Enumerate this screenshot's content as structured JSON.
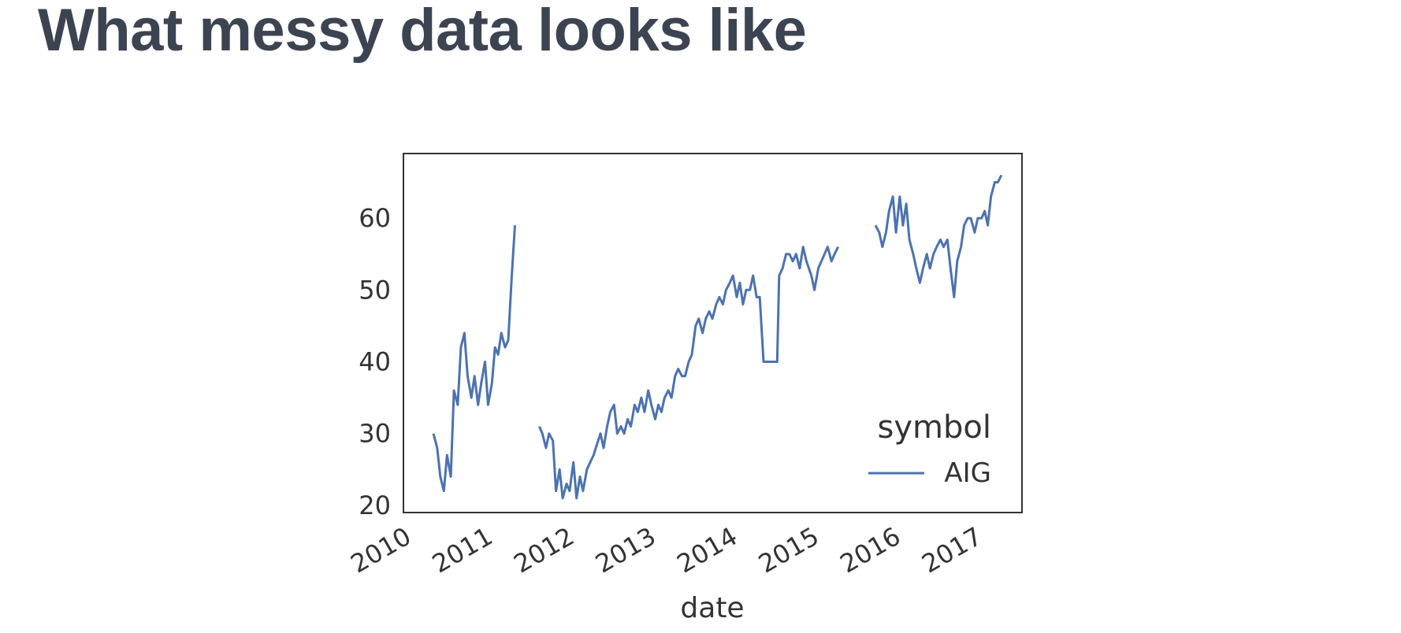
{
  "page": {
    "title": "What messy data looks like"
  },
  "chart_data": {
    "type": "line",
    "title": "",
    "xlabel": "date",
    "ylabel": "",
    "xlim": [
      "2010-01-01",
      "2017-08-01"
    ],
    "ylim": [
      19,
      69
    ],
    "x_ticks": [
      "2010",
      "2011",
      "2012",
      "2013",
      "2014",
      "2015",
      "2016",
      "2017"
    ],
    "y_ticks": [
      20,
      30,
      40,
      50,
      60
    ],
    "grid": false,
    "legend": {
      "title": "symbol",
      "position": "bottom-right"
    },
    "colors": {
      "series": "#4c72b0",
      "frame": "#333333",
      "text": "#333333",
      "title": "#3d4451"
    },
    "series": [
      {
        "name": "AIG",
        "segments": [
          [
            [
              "2010-05-15",
              30
            ],
            [
              "2010-06-01",
              28
            ],
            [
              "2010-06-15",
              24
            ],
            [
              "2010-07-01",
              22
            ],
            [
              "2010-07-15",
              27
            ],
            [
              "2010-08-01",
              24
            ],
            [
              "2010-08-15",
              36
            ],
            [
              "2010-09-01",
              34
            ],
            [
              "2010-09-15",
              42
            ],
            [
              "2010-10-01",
              44
            ],
            [
              "2010-10-15",
              38
            ],
            [
              "2010-11-01",
              35
            ],
            [
              "2010-11-15",
              38
            ],
            [
              "2010-12-01",
              34
            ],
            [
              "2010-12-15",
              37
            ],
            [
              "2011-01-01",
              40
            ],
            [
              "2011-01-15",
              34
            ],
            [
              "2011-02-01",
              37
            ],
            [
              "2011-02-15",
              42
            ],
            [
              "2011-03-01",
              41
            ],
            [
              "2011-03-15",
              44
            ],
            [
              "2011-04-01",
              42
            ],
            [
              "2011-04-15",
              43
            ],
            [
              "2011-05-01",
              52
            ],
            [
              "2011-05-15",
              59
            ]
          ],
          [
            [
              "2011-09-01",
              31
            ],
            [
              "2011-09-15",
              30
            ],
            [
              "2011-10-01",
              28
            ],
            [
              "2011-10-15",
              30
            ],
            [
              "2011-11-01",
              29
            ],
            [
              "2011-11-15",
              22
            ],
            [
              "2011-12-01",
              25
            ],
            [
              "2011-12-15",
              21
            ],
            [
              "2012-01-01",
              23
            ],
            [
              "2012-01-15",
              22
            ],
            [
              "2012-02-01",
              26
            ],
            [
              "2012-02-15",
              21
            ],
            [
              "2012-03-01",
              24
            ],
            [
              "2012-03-15",
              22
            ],
            [
              "2012-04-01",
              25
            ],
            [
              "2012-05-01",
              27
            ],
            [
              "2012-06-01",
              30
            ],
            [
              "2012-06-15",
              28
            ],
            [
              "2012-07-01",
              31
            ],
            [
              "2012-07-15",
              33
            ],
            [
              "2012-08-01",
              34
            ],
            [
              "2012-08-15",
              30
            ],
            [
              "2012-09-01",
              31
            ],
            [
              "2012-09-15",
              30
            ],
            [
              "2012-10-01",
              32
            ],
            [
              "2012-10-15",
              31
            ],
            [
              "2012-11-01",
              34
            ],
            [
              "2012-11-15",
              33
            ],
            [
              "2012-12-01",
              35
            ],
            [
              "2012-12-15",
              33
            ],
            [
              "2013-01-01",
              36
            ],
            [
              "2013-01-15",
              34
            ],
            [
              "2013-02-01",
              32
            ],
            [
              "2013-02-15",
              34
            ],
            [
              "2013-03-01",
              33
            ],
            [
              "2013-03-15",
              35
            ],
            [
              "2013-04-01",
              36
            ],
            [
              "2013-04-15",
              35
            ],
            [
              "2013-05-01",
              38
            ],
            [
              "2013-05-15",
              39
            ],
            [
              "2013-06-01",
              38
            ],
            [
              "2013-06-15",
              38
            ],
            [
              "2013-07-01",
              40
            ],
            [
              "2013-07-15",
              41
            ],
            [
              "2013-08-01",
              45
            ],
            [
              "2013-08-15",
              46
            ],
            [
              "2013-09-01",
              44
            ],
            [
              "2013-09-15",
              46
            ],
            [
              "2013-10-01",
              47
            ],
            [
              "2013-10-15",
              46
            ],
            [
              "2013-11-01",
              48
            ],
            [
              "2013-11-15",
              49
            ],
            [
              "2013-12-01",
              48
            ],
            [
              "2013-12-15",
              50
            ],
            [
              "2014-01-01",
              51
            ],
            [
              "2014-01-15",
              52
            ],
            [
              "2014-02-01",
              49
            ],
            [
              "2014-02-15",
              51
            ],
            [
              "2014-03-01",
              48
            ],
            [
              "2014-03-15",
              50
            ],
            [
              "2014-04-01",
              50
            ],
            [
              "2014-04-15",
              52
            ],
            [
              "2014-05-01",
              49
            ],
            [
              "2014-05-15",
              49
            ],
            [
              "2014-06-01",
              40
            ],
            [
              "2014-06-15",
              40
            ],
            [
              "2014-07-01",
              40
            ],
            [
              "2014-07-15",
              40
            ],
            [
              "2014-08-01",
              40
            ],
            [
              "2014-08-10",
              52
            ],
            [
              "2014-08-25",
              53
            ],
            [
              "2014-09-10",
              55
            ],
            [
              "2014-09-25",
              55
            ],
            [
              "2014-10-10",
              54
            ],
            [
              "2014-10-25",
              55
            ],
            [
              "2014-11-10",
              53
            ],
            [
              "2014-11-25",
              56
            ],
            [
              "2014-12-10",
              54
            ],
            [
              "2015-01-01",
              52
            ],
            [
              "2015-01-15",
              50
            ],
            [
              "2015-02-01",
              53
            ],
            [
              "2015-02-15",
              54
            ],
            [
              "2015-03-01",
              55
            ],
            [
              "2015-03-15",
              56
            ],
            [
              "2015-04-01",
              54
            ],
            [
              "2015-04-15",
              55
            ],
            [
              "2015-05-01",
              56
            ]
          ],
          [
            [
              "2015-10-15",
              59
            ],
            [
              "2015-11-01",
              58
            ],
            [
              "2015-11-15",
              56
            ],
            [
              "2015-12-01",
              58
            ],
            [
              "2015-12-15",
              61
            ],
            [
              "2016-01-01",
              63
            ],
            [
              "2016-01-15",
              58
            ],
            [
              "2016-02-01",
              63
            ],
            [
              "2016-02-15",
              59
            ],
            [
              "2016-03-01",
              62
            ],
            [
              "2016-03-15",
              57
            ],
            [
              "2016-04-01",
              55
            ],
            [
              "2016-04-15",
              53
            ],
            [
              "2016-05-01",
              51
            ],
            [
              "2016-05-15",
              53
            ],
            [
              "2016-06-01",
              55
            ],
            [
              "2016-06-15",
              53
            ],
            [
              "2016-07-01",
              55
            ],
            [
              "2016-07-15",
              56
            ],
            [
              "2016-08-01",
              57
            ],
            [
              "2016-08-15",
              56
            ],
            [
              "2016-09-01",
              57
            ],
            [
              "2016-09-15",
              53
            ],
            [
              "2016-10-01",
              49
            ],
            [
              "2016-10-15",
              54
            ],
            [
              "2016-11-01",
              56
            ],
            [
              "2016-11-15",
              59
            ],
            [
              "2016-12-01",
              60
            ],
            [
              "2016-12-15",
              60
            ],
            [
              "2017-01-01",
              58
            ],
            [
              "2017-01-15",
              60
            ],
            [
              "2017-02-01",
              60
            ],
            [
              "2017-02-15",
              61
            ],
            [
              "2017-03-01",
              59
            ],
            [
              "2017-03-15",
              63
            ],
            [
              "2017-04-01",
              65
            ],
            [
              "2017-04-15",
              65
            ],
            [
              "2017-05-01",
              66
            ]
          ]
        ]
      }
    ]
  }
}
